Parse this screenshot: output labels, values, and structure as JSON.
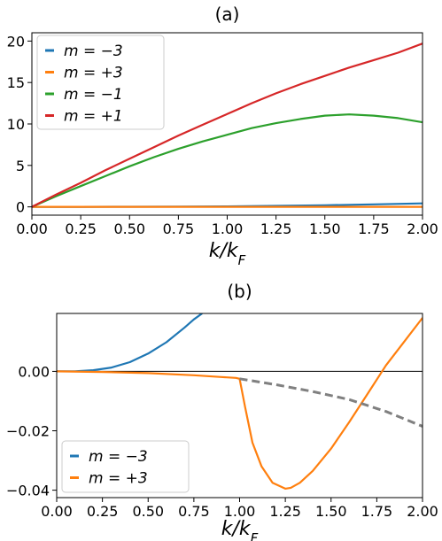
{
  "chart_data": [
    {
      "type": "line",
      "title": "(a)",
      "xlabel": "k/k_F",
      "xlabel_main": "k/k",
      "xlabel_sub": "F",
      "ylabel": "",
      "xlim": [
        0,
        2
      ],
      "ylim": [
        -1.0,
        21.0
      ],
      "xticks": [
        "0.00",
        "0.25",
        "0.50",
        "0.75",
        "1.00",
        "1.25",
        "1.50",
        "1.75",
        "2.00"
      ],
      "xtick_values": [
        0,
        0.25,
        0.5,
        0.75,
        1.0,
        1.25,
        1.5,
        1.75,
        2.0
      ],
      "yticks": [
        "0",
        "5",
        "10",
        "15",
        "20"
      ],
      "ytick_values": [
        0,
        5,
        10,
        15,
        20
      ],
      "grid": false,
      "legend_position": "top-left",
      "series": [
        {
          "name": "m = −3",
          "color": "#1f77b4",
          "x": [
            0,
            0.25,
            0.5,
            0.75,
            1.0,
            1.25,
            1.5,
            1.75,
            2.0
          ],
          "values": [
            0,
            0.0,
            0.01,
            0.03,
            0.06,
            0.12,
            0.2,
            0.3,
            0.42
          ]
        },
        {
          "name": "m = +3",
          "color": "#ff7f0e",
          "x": [
            0,
            0.25,
            0.5,
            0.75,
            1.0,
            1.25,
            1.5,
            1.75,
            2.0
          ],
          "values": [
            0,
            0,
            0,
            0,
            0,
            0,
            0,
            0,
            0
          ]
        },
        {
          "name": "m = −1",
          "color": "#2ca02c",
          "x": [
            0,
            0.125,
            0.25,
            0.375,
            0.5,
            0.625,
            0.75,
            0.875,
            1.0,
            1.125,
            1.25,
            1.375,
            1.5,
            1.625,
            1.75,
            1.875,
            2.0
          ],
          "values": [
            0,
            1.3,
            2.5,
            3.7,
            4.9,
            6.0,
            7.0,
            7.9,
            8.7,
            9.5,
            10.1,
            10.6,
            11.0,
            11.15,
            11.0,
            10.7,
            10.2
          ]
        },
        {
          "name": "m = +1",
          "color": "#d62728",
          "x": [
            0,
            0.125,
            0.25,
            0.375,
            0.5,
            0.625,
            0.75,
            0.875,
            1.0,
            1.125,
            1.25,
            1.375,
            1.5,
            1.625,
            1.75,
            1.875,
            2.0
          ],
          "values": [
            0,
            1.5,
            2.9,
            4.4,
            5.8,
            7.2,
            8.6,
            9.9,
            11.2,
            12.5,
            13.7,
            14.8,
            15.8,
            16.8,
            17.7,
            18.6,
            19.7
          ]
        }
      ]
    },
    {
      "type": "line",
      "title": "(b)",
      "xlabel": "k/k_F",
      "xlabel_main": "k/k",
      "xlabel_sub": "F",
      "ylabel": "",
      "xlim": [
        0,
        2
      ],
      "ylim": [
        -0.0425,
        0.0195
      ],
      "xticks": [
        "0.00",
        "0.25",
        "0.50",
        "0.75",
        "1.00",
        "1.25",
        "1.50",
        "1.75",
        "2.00"
      ],
      "xtick_values": [
        0,
        0.25,
        0.5,
        0.75,
        1.0,
        1.25,
        1.5,
        1.75,
        2.0
      ],
      "yticks": [
        "0.00",
        "−0.02",
        "−0.04"
      ],
      "ytick_values": [
        0,
        -0.02,
        -0.04
      ],
      "zero_line": true,
      "grid": false,
      "legend_position": "bottom-left",
      "series": [
        {
          "name": "m = −3",
          "color": "#1f77b4",
          "x": [
            0,
            0.1,
            0.2,
            0.3,
            0.4,
            0.5,
            0.6,
            0.7,
            0.75,
            0.795
          ],
          "values": [
            0,
            5e-05,
            0.0004,
            0.0013,
            0.0031,
            0.006,
            0.0098,
            0.0148,
            0.0175,
            0.0195
          ]
        },
        {
          "name": "m = +3",
          "color": "#ff7f0e",
          "x": [
            0,
            0.25,
            0.5,
            0.75,
            0.9,
            0.98,
            1.0,
            1.03,
            1.07,
            1.12,
            1.18,
            1.25,
            1.28,
            1.33,
            1.4,
            1.5,
            1.6,
            1.7,
            1.8,
            1.9,
            2.0
          ],
          "values": [
            0,
            -0.0002,
            -0.0006,
            -0.0013,
            -0.0019,
            -0.0022,
            -0.0025,
            -0.012,
            -0.024,
            -0.032,
            -0.0375,
            -0.0395,
            -0.0392,
            -0.0375,
            -0.0335,
            -0.026,
            -0.017,
            -0.0075,
            0.002,
            0.01,
            0.018
          ]
        },
        {
          "name": "",
          "color": "#808080",
          "dashed": true,
          "x": [
            1.0,
            1.2,
            1.4,
            1.6,
            1.8,
            2.0
          ],
          "values": [
            -0.0025,
            -0.0045,
            -0.0068,
            -0.0095,
            -0.0135,
            -0.0185
          ]
        }
      ]
    }
  ]
}
